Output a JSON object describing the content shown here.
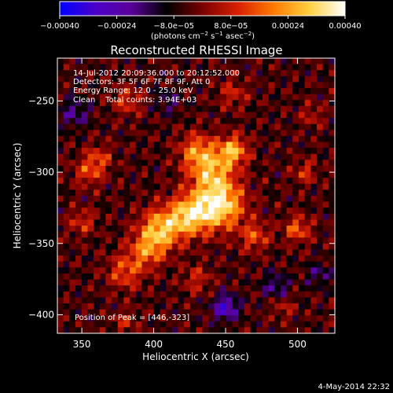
{
  "colorbar": {
    "ticks": [
      {
        "value": -0.0004,
        "label": "−0.00040"
      },
      {
        "value": -0.00024,
        "label": "−0.00024"
      },
      {
        "value": -8e-05,
        "label": "−8.0e−05"
      },
      {
        "value": 8e-05,
        "label": "8.0e−05"
      },
      {
        "value": 0.00024,
        "label": "0.00024"
      },
      {
        "value": 0.0004,
        "label": "0.00040"
      }
    ],
    "range": [
      -0.0004,
      0.0004
    ],
    "unit_label_parts": [
      "(photons cm",
      "−2",
      " s",
      "−1",
      " asec",
      "−2",
      ")"
    ],
    "colors": [
      "#0000ff",
      "#4b00c8",
      "#5a009a",
      "#000000",
      "#7a0000",
      "#d92000",
      "#ff7a00",
      "#ffd040",
      "#ffffff"
    ]
  },
  "chart_data": {
    "type": "heatmap",
    "title": "Reconstructed RHESSI Image",
    "xlabel": "Heliocentric X (arcsec)",
    "ylabel": "Heliocentric Y (arcsec)",
    "xlim": [
      333,
      526
    ],
    "ylim": [
      -413,
      -220
    ],
    "xticks": [
      350,
      400,
      450,
      500
    ],
    "yticks": [
      -250,
      -300,
      -350,
      -400
    ],
    "peak": {
      "x": 446,
      "y": -323
    },
    "annotations": [
      "14-Jul-2012 20:09:36.000 to 20:12:52.000",
      "Detectors: 3F 5F 6F 7F 8F 9F, Att 0",
      "Energy Range: 12.0 - 25.0 keV",
      "Clean    Total counts: 3.94E+03"
    ],
    "peak_label": "Position of Peak = [446,-323]",
    "grid": false
  },
  "footer": {
    "date": "4-May-2014 22:32"
  }
}
